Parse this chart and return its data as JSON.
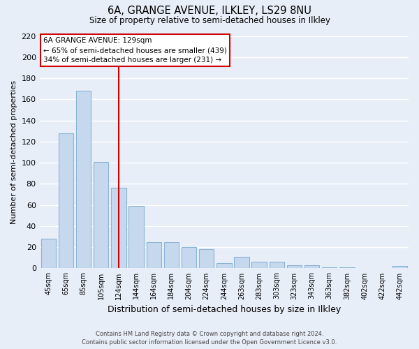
{
  "title": "6A, GRANGE AVENUE, ILKLEY, LS29 8NU",
  "subtitle": "Size of property relative to semi-detached houses in Ilkley",
  "xlabel": "Distribution of semi-detached houses by size in Ilkley",
  "ylabel": "Number of semi-detached properties",
  "bar_color": "#c5d8ee",
  "bar_edge_color": "#8ab4d4",
  "categories": [
    "45sqm",
    "65sqm",
    "85sqm",
    "105sqm",
    "124sqm",
    "144sqm",
    "164sqm",
    "184sqm",
    "204sqm",
    "224sqm",
    "244sqm",
    "263sqm",
    "283sqm",
    "303sqm",
    "323sqm",
    "343sqm",
    "363sqm",
    "382sqm",
    "402sqm",
    "422sqm",
    "442sqm"
  ],
  "values": [
    28,
    128,
    168,
    101,
    76,
    59,
    25,
    25,
    20,
    18,
    5,
    11,
    6,
    6,
    3,
    3,
    1,
    1,
    0,
    0,
    2
  ],
  "vline_pos": 4,
  "vline_color": "#cc0000",
  "ylim": [
    0,
    220
  ],
  "yticks": [
    0,
    20,
    40,
    60,
    80,
    100,
    120,
    140,
    160,
    180,
    200,
    220
  ],
  "annotation_title": "6A GRANGE AVENUE: 129sqm",
  "annotation_line1": "← 65% of semi-detached houses are smaller (439)",
  "annotation_line2": "34% of semi-detached houses are larger (231) →",
  "annotation_box_color": "#ffffff",
  "annotation_box_edge": "#cc0000",
  "footer1": "Contains HM Land Registry data © Crown copyright and database right 2024.",
  "footer2": "Contains public sector information licensed under the Open Government Licence v3.0.",
  "background_color": "#e8eef8",
  "grid_color": "#ffffff",
  "fig_width": 6.0,
  "fig_height": 5.0
}
